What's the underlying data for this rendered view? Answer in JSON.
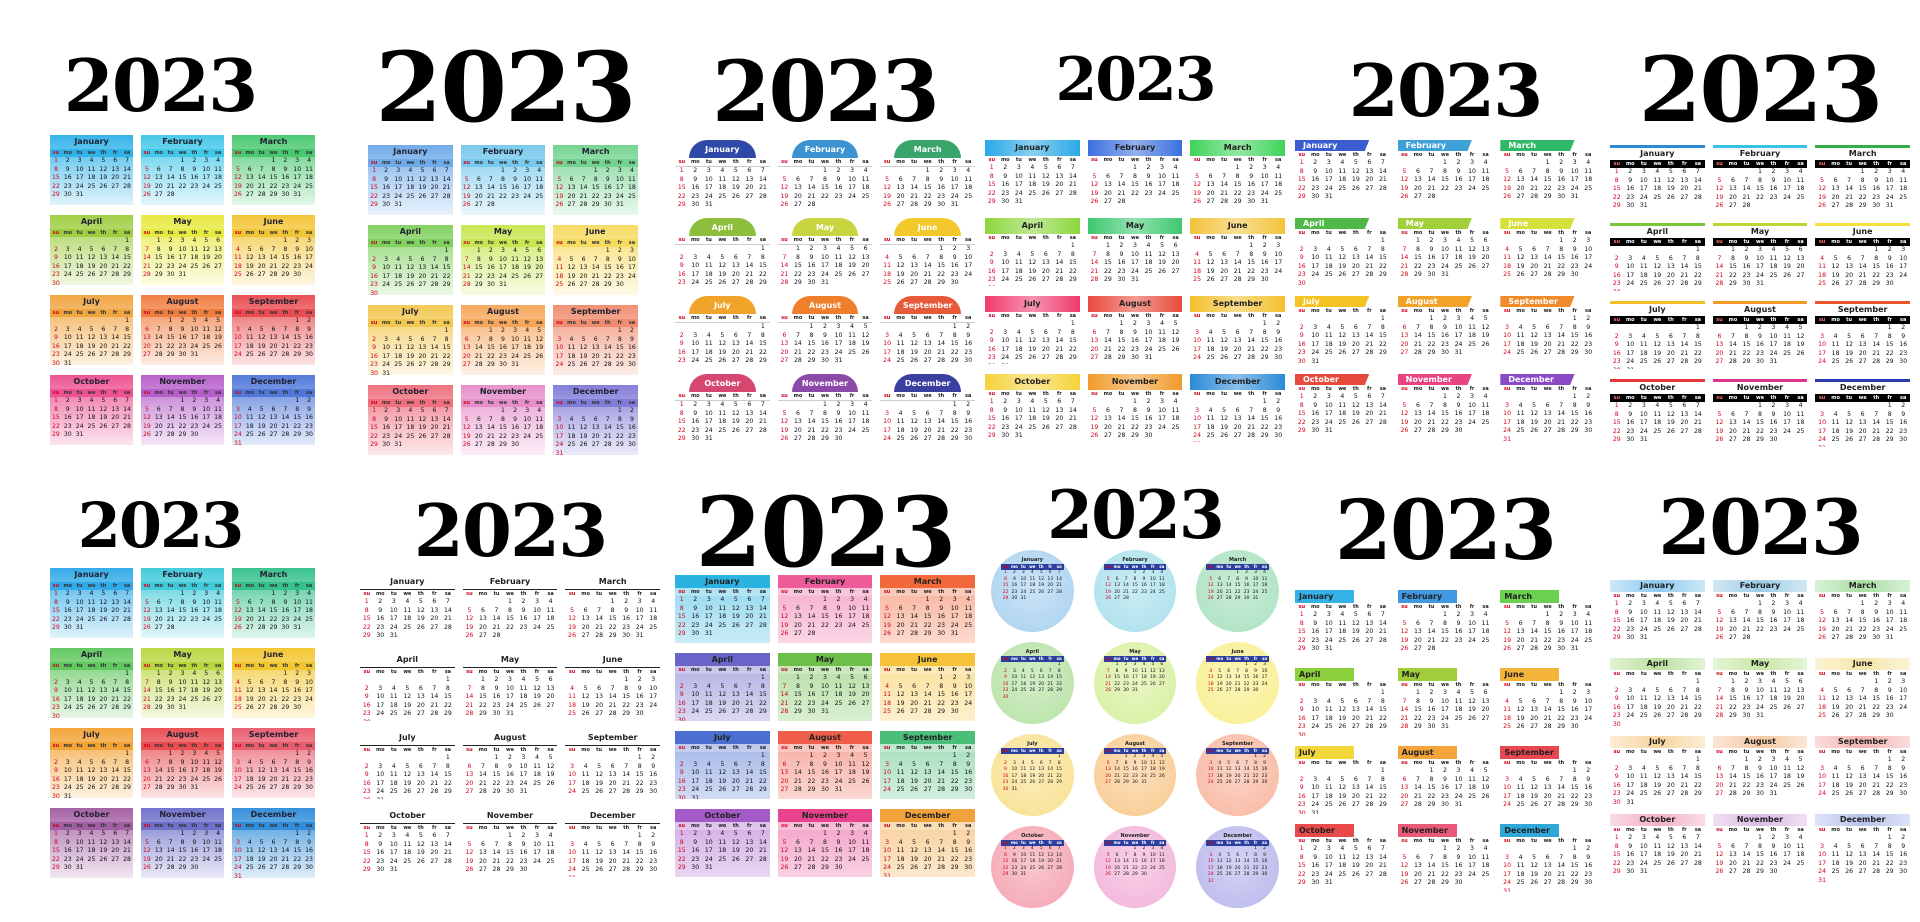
{
  "year": "2023",
  "weekday_headers": [
    "su",
    "mo",
    "tu",
    "we",
    "th",
    "fr",
    "sa"
  ],
  "months": [
    {
      "name": "January",
      "offset": 0,
      "days": 31
    },
    {
      "name": "February",
      "offset": 3,
      "days": 28
    },
    {
      "name": "March",
      "offset": 3,
      "days": 31
    },
    {
      "name": "April",
      "offset": 6,
      "days": 30
    },
    {
      "name": "May",
      "offset": 1,
      "days": 31
    },
    {
      "name": "June",
      "offset": 4,
      "days": 30
    },
    {
      "name": "July",
      "offset": 6,
      "days": 31
    },
    {
      "name": "August",
      "offset": 2,
      "days": 31
    },
    {
      "name": "September",
      "offset": 5,
      "days": 30
    },
    {
      "name": "October",
      "offset": 0,
      "days": 31
    },
    {
      "name": "November",
      "offset": 3,
      "days": 30
    },
    {
      "name": "December",
      "offset": 5,
      "days": 31
    }
  ],
  "panels": [
    {
      "style": "s-grad",
      "yearSize": 72,
      "yearTop": 50,
      "gridTop": 135,
      "colors": [
        "#2ab0e8",
        "#3cc6e8",
        "#43c66a",
        "#9ccc3d",
        "#e6e83a",
        "#f2c331",
        "#f0a23a",
        "#f07a3a",
        "#e8474c",
        "#ec4c8e",
        "#b35ac8",
        "#4a73d8"
      ]
    },
    {
      "style": "s-grad",
      "yearSize": 96,
      "yearTop": 40,
      "gridTop": 145,
      "colors": [
        "#6aa7e8",
        "#72c7ec",
        "#6fd28c",
        "#7ccf5a",
        "#c4e64b",
        "#f6d95c",
        "#f2c64d",
        "#f6a456",
        "#f08a6c",
        "#ee6b7a",
        "#e58bc8",
        "#7d78d6"
      ]
    },
    {
      "style": "s-dome",
      "yearSize": 84,
      "yearTop": 50,
      "gridTop": 140,
      "colors": [
        "#2f49a8",
        "#3c93d2",
        "#3aa56a",
        "#8dbf3c",
        "#c8d440",
        "#f2c82c",
        "#f0a52a",
        "#f07f2c",
        "#e65a3a",
        "#d6476f",
        "#8c4aa8",
        "#3b3fa0"
      ]
    },
    {
      "style": "s-bar",
      "yearSize": 60,
      "yearTop": 50,
      "gridTop": 140,
      "colors": [
        "#29a8e8",
        "#3b6fe0",
        "#3fd45a",
        "#8bd63c",
        "#3cc86f",
        "#f2c33a",
        "#f03a6e",
        "#e84a3c",
        "#f4c02c",
        "#f6d23a",
        "#f19a2a",
        "#2a8ad8"
      ]
    },
    {
      "style": "s-tab",
      "yearSize": 72,
      "yearTop": 55,
      "gridTop": 140,
      "colors": [
        "#3b5bd0",
        "#3ea2d8",
        "#2fb868",
        "#50b848",
        "#a0cf3a",
        "#d6e03a",
        "#f4c324",
        "#f2a227",
        "#f08a2a",
        "#e64a3c",
        "#e84482",
        "#8a4ac8"
      ]
    },
    {
      "style": "s-black",
      "yearSize": 90,
      "yearTop": 45,
      "gridTop": 145,
      "colors": [
        "#2a8ad8",
        "#39c2e8",
        "#2fb048",
        "#7cc43a",
        "#bad838",
        "#f4e03a",
        "#f4c02a",
        "#f29a24",
        "#e8562a",
        "#e8383a",
        "#d8348a",
        "#2a3aa8"
      ]
    },
    {
      "style": "s-grad",
      "yearSize": 62,
      "yearTop": 495,
      "gridTop": 568,
      "colors": [
        "#2aa8e8",
        "#3bc8d8",
        "#2fbf88",
        "#5cc65a",
        "#b7d53a",
        "#f2c42a",
        "#f2a030",
        "#e8484c",
        "#e8586a",
        "#a05aa0",
        "#6a6cc8",
        "#2a8ad8"
      ]
    },
    {
      "style": "s-plain",
      "yearSize": 72,
      "yearTop": 495,
      "gridTop": 575,
      "colors": [
        "#ffffff",
        "#ffffff",
        "#ffffff",
        "#ffffff",
        "#ffffff",
        "#ffffff",
        "#ffffff",
        "#ffffff",
        "#ffffff",
        "#ffffff",
        "#ffffff",
        "#ffffff"
      ]
    },
    {
      "style": "s-blocks",
      "yearSize": 96,
      "yearTop": 485,
      "gridTop": 575,
      "colors": [
        "#2ab3e0",
        "#ee5d9a",
        "#f26a3c",
        "#6a63c8",
        "#6cc04a",
        "#f5c23a",
        "#4a6fd0",
        "#ef5e4a",
        "#4bbe7a",
        "#a45ac8",
        "#e8448e",
        "#f2a23a"
      ]
    },
    {
      "style": "s-circle",
      "yearSize": 66,
      "yearTop": 482,
      "gridTop": 550,
      "colors": [
        "#a9d1ef",
        "#a9e0ec",
        "#a9e1bf",
        "#b6e2a4",
        "#d8ef9e",
        "#f8ef8e",
        "#f8e08e",
        "#f8ca8e",
        "#f8b7a0",
        "#f4a3b0",
        "#f2b2d8",
        "#b8b7ec"
      ]
    },
    {
      "style": "s-flag",
      "yearSize": 82,
      "yearTop": 490,
      "gridTop": 590,
      "colors": [
        "#35b1e8",
        "#3f98e0",
        "#6cd050",
        "#8ccf3c",
        "#a0cd3a",
        "#f4b43a",
        "#f2d83a",
        "#f4a43a",
        "#e84850",
        "#e84a4a",
        "#e85a78",
        "#2fa8d8"
      ]
    },
    {
      "style": "s-pastel",
      "yearSize": 76,
      "yearTop": 490,
      "gridTop": 580,
      "colors": [
        "#8fcbf0",
        "#9ccde6",
        "#a9dfa5",
        "#bde2a0",
        "#c9e8a6",
        "#f6e6a8",
        "#f7d6a0",
        "#f6c9a4",
        "#f3b4b2",
        "#f3b1c6",
        "#dcbbe4",
        "#b7c2ec"
      ]
    }
  ]
}
